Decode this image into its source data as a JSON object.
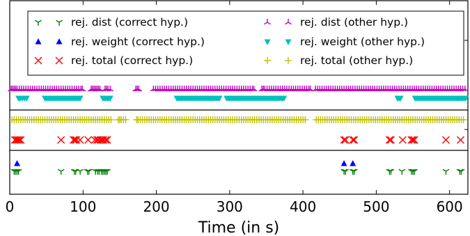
{
  "chart_data": {
    "type": "scatter",
    "xlabel": "Time (in s)",
    "xlim": [
      0,
      625
    ],
    "xticks": [
      0,
      100,
      200,
      300,
      400,
      500,
      600
    ],
    "legend_placement": "top",
    "legend": [
      {
        "name": "rej. dist (correct hyp.)",
        "marker": "tri_down",
        "color": "#007f00"
      },
      {
        "name": "rej. dist (other hyp.)",
        "marker": "tri_up",
        "color": "#bf00bf"
      },
      {
        "name": "rej. weight (correct hyp.)",
        "marker": "triangle_up",
        "color": "#0000ff"
      },
      {
        "name": "rej. weight (other hyp.)",
        "marker": "triangle_down",
        "color": "#00bfbf"
      },
      {
        "name": "rej. total (correct hyp.)",
        "marker": "x",
        "color": "#ff0000"
      },
      {
        "name": "rej. total (other hyp.)",
        "marker": "plus",
        "color": "#bfbf00"
      }
    ],
    "panels": [
      {
        "name": "top",
        "series": [
          {
            "ref": "rej. dist (other hyp.)",
            "row": 1,
            "points": [
              2,
              4,
              6,
              8,
              10,
              13,
              16,
              19,
              22,
              25,
              28,
              31,
              34,
              37,
              40,
              43,
              46,
              49,
              52,
              55,
              58,
              61,
              64,
              67,
              70,
              73,
              76,
              79,
              82,
              85,
              88,
              91,
              94,
              97,
              99,
              111,
              113,
              115,
              117,
              119,
              121,
              123,
              130,
              132,
              134,
              137,
              172,
              174,
              176,
              196,
              199,
              202,
              205,
              208,
              211,
              214,
              217,
              220,
              223,
              226,
              229,
              232,
              235,
              238,
              241,
              244,
              247,
              250,
              253,
              256,
              259,
              262,
              265,
              268,
              271,
              274,
              277,
              280,
              283,
              286,
              289,
              292,
              295,
              298,
              301,
              304,
              307,
              310,
              313,
              316,
              319,
              322,
              325,
              328,
              331,
              333,
              344,
              346,
              348,
              351,
              354,
              357,
              360,
              363,
              366,
              369,
              372,
              375,
              378,
              381,
              384,
              387,
              390,
              393,
              396,
              399,
              402,
              405,
              408,
              410,
              417,
              420,
              423,
              426,
              429,
              432,
              435,
              438,
              441,
              444,
              447,
              450,
              453,
              456,
              459,
              462,
              465,
              468,
              471,
              474,
              477,
              480,
              483,
              486,
              489,
              492,
              495,
              498,
              501,
              504,
              507,
              510,
              513,
              516,
              519,
              522,
              525,
              528,
              531,
              534,
              537,
              540,
              543,
              546,
              549,
              552,
              555,
              558,
              561,
              564,
              567,
              570,
              573,
              576,
              579,
              582,
              585,
              588,
              591,
              594,
              597,
              600,
              603,
              606,
              609,
              612,
              615,
              618,
              621
            ]
          },
          {
            "ref": "rej. weight (other hyp.)",
            "row": 2,
            "points": [
              12,
              14,
              17,
              20,
              23,
              48,
              50,
              52,
              54,
              56,
              58,
              60,
              62,
              64,
              66,
              68,
              70,
              72,
              74,
              76,
              78,
              80,
              82,
              84,
              86,
              88,
              90,
              92,
              94,
              96,
              127,
              129,
              131,
              133,
              135,
              137,
              228,
              230,
              232,
              234,
              236,
              238,
              240,
              242,
              244,
              246,
              248,
              250,
              252,
              254,
              256,
              258,
              260,
              262,
              264,
              266,
              268,
              270,
              272,
              274,
              276,
              278,
              280,
              282,
              284,
              286,
              296,
              298,
              300,
              302,
              304,
              306,
              308,
              310,
              312,
              314,
              316,
              318,
              320,
              322,
              324,
              326,
              328,
              330,
              332,
              334,
              336,
              338,
              340,
              342,
              344,
              346,
              348,
              350,
              352,
              354,
              356,
              358,
              360,
              362,
              364,
              366,
              368,
              370,
              372,
              374,
              529,
              531,
              533,
              553,
              555,
              557,
              559,
              561,
              563,
              565,
              567,
              569,
              571,
              573,
              575,
              577,
              579,
              581,
              583,
              585,
              587,
              589,
              591,
              593,
              595,
              597,
              599,
              601,
              603,
              605,
              607,
              609,
              611,
              612,
              614,
              616,
              618,
              620,
              622
            ]
          }
        ]
      },
      {
        "name": "middle",
        "series": [
          {
            "ref": "rej. total (other hyp.)",
            "row": 1,
            "points": [
              3,
              6,
              9,
              12,
              15,
              18,
              21,
              24,
              27,
              30,
              33,
              36,
              39,
              42,
              45,
              48,
              51,
              54,
              57,
              60,
              63,
              66,
              69,
              72,
              75,
              78,
              81,
              84,
              87,
              90,
              93,
              96,
              99,
              102,
              105,
              108,
              111,
              114,
              117,
              120,
              123,
              126,
              129,
              132,
              135,
              138,
              148,
              150,
              152,
              155,
              158,
              173,
              175,
              178,
              181,
              184,
              187,
              190,
              193,
              196,
              199,
              202,
              205,
              208,
              211,
              214,
              217,
              220,
              223,
              226,
              229,
              232,
              235,
              238,
              241,
              244,
              247,
              250,
              253,
              256,
              259,
              262,
              265,
              268,
              271,
              274,
              277,
              280,
              283,
              286,
              289,
              292,
              295,
              298,
              301,
              304,
              307,
              310,
              313,
              316,
              319,
              322,
              325,
              328,
              331,
              334,
              337,
              340,
              343,
              346,
              349,
              352,
              355,
              358,
              361,
              364,
              367,
              370,
              373,
              376,
              379,
              382,
              385,
              388,
              391,
              394,
              397,
              400,
              403,
              418,
              421,
              424,
              427,
              430,
              433,
              436,
              439,
              442,
              445,
              448,
              451,
              454,
              457,
              460,
              463,
              466,
              469,
              472,
              475,
              478,
              481,
              484,
              487,
              490,
              493,
              496,
              499,
              502,
              505,
              508,
              511,
              514,
              517,
              520,
              523,
              526,
              529,
              532,
              535,
              538,
              541,
              544,
              547,
              550,
              553,
              556,
              559,
              562,
              565,
              568,
              571,
              574,
              577,
              580,
              583,
              586,
              589,
              592,
              595,
              598,
              601,
              604,
              607,
              610,
              613,
              616,
              619
            ]
          },
          {
            "ref": "rej. total (correct hyp.)",
            "row": 2,
            "points": [
              7,
              9,
              11,
              13,
              15,
              70,
              87,
              89,
              91,
              96,
              107,
              116,
              119,
              121,
              124,
              126,
              128,
              131,
              133,
              456,
              458,
              468,
              470,
              518,
              520,
              536,
              548,
              550,
              552,
              595,
              615
            ]
          }
        ]
      },
      {
        "name": "bottom",
        "series": [
          {
            "ref": "rej. weight (correct hyp.)",
            "row": 1,
            "points": [
              10,
              456,
              468
            ]
          },
          {
            "ref": "rej. dist (correct hyp.)",
            "row": 2,
            "points": [
              6,
              8,
              10,
              12,
              70,
              88,
              90,
              96,
              106,
              108,
              117,
              120,
              122,
              125,
              127,
              129,
              131,
              133,
              456,
              458,
              468,
              470,
              518,
              520,
              535,
              548,
              550,
              552,
              595,
              614,
              616
            ]
          }
        ]
      }
    ]
  }
}
